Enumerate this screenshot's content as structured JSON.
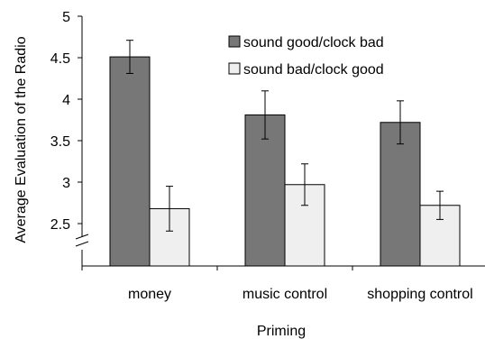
{
  "chart_data": {
    "type": "bar",
    "categories": [
      "money",
      "music control",
      "shopping control"
    ],
    "series": [
      {
        "name": "sound good/clock bad",
        "values": [
          4.51,
          3.81,
          3.72
        ],
        "errors": [
          0.2,
          0.29,
          0.26
        ],
        "color": "#777777"
      },
      {
        "name": "sound bad/clock good",
        "values": [
          2.68,
          2.97,
          2.72
        ],
        "errors": [
          0.27,
          0.25,
          0.17
        ],
        "color": "#efefef"
      }
    ],
    "title": "",
    "xlabel": "Priming",
    "ylabel": "Average Evaluation of the Radio",
    "ylim": [
      2.5,
      5
    ],
    "yticks": [
      "2.5",
      "3",
      "3.5",
      "4",
      "4.5",
      "5"
    ],
    "axis_break": true,
    "grid": false,
    "legend_position": "top-right"
  }
}
